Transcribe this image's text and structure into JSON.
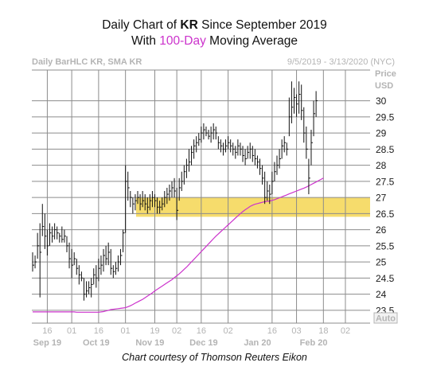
{
  "title": {
    "line1_prefix": "Daily Chart of ",
    "line1_ticker": "KR",
    "line1_suffix": " Since September 2019",
    "line2_prefix": "With ",
    "line2_accent": "100-Day",
    "line2_suffix": " Moving Average"
  },
  "header": {
    "left": "Daily BarHLC KR, SMA KR",
    "right": "9/5/2019 - 3/13/2020 (NYC)"
  },
  "axis": {
    "price_label": "Price",
    "currency_label": "USD",
    "auto_button": "Auto"
  },
  "credit": "Chart courtesy of Thomson Reuters Eikon",
  "colors": {
    "bars": "#111111",
    "sma": "#cc33cc",
    "highlight_zone": "#f6dc6c",
    "grid": "#8c8c8c",
    "axis_text": "#b4b4b4",
    "accent_text": "#cc33cc"
  },
  "chart_data": {
    "type": "ohlc",
    "series": [
      {
        "name": "KR",
        "style": "high-low-close bars"
      },
      {
        "name": "SMA KR",
        "style": "line"
      }
    ],
    "yticks": [
      "23.5",
      "24",
      "24.5",
      "25",
      "25.5",
      "26",
      "26.5",
      "27",
      "27.5",
      "28",
      "28.5",
      "29",
      "29.5",
      "30"
    ],
    "ylim": [
      23.3,
      30.8
    ],
    "grid": true,
    "x_day_labels": [
      {
        "label": "16",
        "bar": 6
      },
      {
        "label": "01",
        "bar": 16
      },
      {
        "label": "16",
        "bar": 27
      },
      {
        "label": "01",
        "bar": 38
      },
      {
        "label": "19",
        "bar": 50
      },
      {
        "label": "02",
        "bar": 59
      },
      {
        "label": "16",
        "bar": 69
      },
      {
        "label": "02",
        "bar": 80
      },
      {
        "label": "16",
        "bar": 98
      },
      {
        "label": "03",
        "bar": 108
      },
      {
        "label": "18",
        "bar": 119
      },
      {
        "label": "02",
        "bar": 128
      }
    ],
    "x_month_labels": [
      {
        "label": "Sep 19",
        "bar": 6
      },
      {
        "label": "Oct 19",
        "bar": 26
      },
      {
        "label": "Nov 19",
        "bar": 48
      },
      {
        "label": "Dec 19",
        "bar": 70
      },
      {
        "label": "Jan 20",
        "bar": 92
      },
      {
        "label": "Feb 20",
        "bar": 115
      }
    ],
    "zone": {
      "low": 26.4,
      "high": 27.0
    },
    "hlc": [
      [
        25.3,
        24.7,
        24.9
      ],
      [
        25.2,
        24.8,
        25.0
      ],
      [
        25.9,
        25.1,
        25.5
      ],
      [
        26.2,
        23.9,
        25.3
      ],
      [
        26.8,
        25.8,
        26.1
      ],
      [
        26.5,
        25.4,
        25.8
      ],
      [
        26.0,
        25.2,
        25.5
      ],
      [
        26.2,
        25.5,
        25.9
      ],
      [
        26.1,
        25.6,
        25.8
      ],
      [
        26.2,
        25.7,
        26.0
      ],
      [
        26.1,
        25.7,
        25.9
      ],
      [
        25.9,
        25.6,
        25.8
      ],
      [
        26.1,
        25.6,
        25.7
      ],
      [
        26.0,
        25.6,
        25.8
      ],
      [
        25.8,
        25.3,
        25.5
      ],
      [
        25.6,
        24.8,
        25.1
      ],
      [
        25.4,
        24.5,
        24.9
      ],
      [
        25.3,
        24.9,
        25.1
      ],
      [
        25.1,
        24.6,
        24.8
      ],
      [
        24.9,
        24.3,
        24.6
      ],
      [
        24.7,
        24.4,
        24.5
      ],
      [
        24.5,
        23.8,
        24.0
      ],
      [
        24.4,
        23.9,
        24.1
      ],
      [
        24.4,
        24.0,
        24.2
      ],
      [
        24.5,
        23.9,
        24.3
      ],
      [
        24.8,
        24.3,
        24.6
      ],
      [
        24.9,
        24.2,
        24.5
      ],
      [
        25.1,
        24.4,
        24.8
      ],
      [
        25.2,
        24.6,
        24.9
      ],
      [
        25.4,
        24.7,
        25.2
      ],
      [
        25.5,
        24.9,
        25.1
      ],
      [
        25.6,
        24.9,
        25.3
      ],
      [
        25.4,
        24.6,
        24.8
      ],
      [
        24.9,
        24.5,
        24.7
      ],
      [
        25.0,
        24.6,
        24.8
      ],
      [
        25.2,
        24.7,
        25.0
      ],
      [
        25.4,
        24.9,
        25.2
      ],
      [
        26.0,
        25.3,
        25.9
      ],
      [
        28.0,
        25.9,
        27.5
      ],
      [
        27.8,
        26.9,
        27.3
      ],
      [
        27.2,
        26.7,
        27.0
      ],
      [
        27.0,
        26.5,
        26.8
      ],
      [
        27.1,
        26.6,
        26.9
      ],
      [
        27.2,
        26.8,
        27.0
      ],
      [
        27.1,
        26.6,
        26.8
      ],
      [
        27.2,
        26.7,
        26.9
      ],
      [
        27.1,
        26.6,
        26.8
      ],
      [
        27.0,
        26.5,
        26.7
      ],
      [
        27.1,
        26.6,
        26.9
      ],
      [
        27.2,
        26.7,
        27.0
      ],
      [
        27.1,
        26.7,
        26.9
      ],
      [
        27.0,
        26.5,
        26.7
      ],
      [
        26.9,
        26.5,
        26.7
      ],
      [
        27.0,
        26.6,
        26.8
      ],
      [
        27.2,
        26.7,
        27.0
      ],
      [
        27.3,
        26.8,
        27.1
      ],
      [
        27.4,
        26.9,
        27.2
      ],
      [
        27.5,
        27.0,
        27.3
      ],
      [
        27.6,
        27.0,
        27.2
      ],
      [
        27.3,
        26.3,
        26.6
      ],
      [
        27.6,
        26.9,
        27.3
      ],
      [
        27.8,
        27.2,
        27.5
      ],
      [
        28.0,
        27.4,
        27.8
      ],
      [
        28.2,
        27.6,
        28.0
      ],
      [
        28.5,
        27.8,
        28.1
      ],
      [
        28.6,
        28.0,
        28.4
      ],
      [
        28.8,
        28.2,
        28.6
      ],
      [
        28.9,
        28.4,
        28.7
      ],
      [
        29.0,
        28.6,
        28.8
      ],
      [
        29.2,
        28.7,
        29.0
      ],
      [
        29.3,
        28.8,
        29.1
      ],
      [
        29.2,
        28.9,
        29.0
      ],
      [
        29.1,
        28.8,
        28.9
      ],
      [
        29.2,
        28.7,
        29.0
      ],
      [
        29.3,
        28.8,
        29.1
      ],
      [
        29.2,
        28.8,
        29.0
      ],
      [
        28.9,
        28.5,
        28.7
      ],
      [
        28.8,
        28.4,
        28.6
      ],
      [
        28.7,
        28.3,
        28.5
      ],
      [
        28.8,
        28.4,
        28.6
      ],
      [
        28.9,
        28.5,
        28.7
      ],
      [
        28.8,
        28.4,
        28.6
      ],
      [
        28.7,
        28.3,
        28.5
      ],
      [
        28.6,
        28.2,
        28.4
      ],
      [
        28.8,
        28.3,
        28.6
      ],
      [
        28.7,
        28.3,
        28.5
      ],
      [
        28.6,
        28.1,
        28.3
      ],
      [
        28.5,
        28.0,
        28.2
      ],
      [
        28.6,
        28.2,
        28.4
      ],
      [
        28.7,
        28.2,
        28.5
      ],
      [
        28.6,
        28.1,
        28.3
      ],
      [
        28.5,
        28.0,
        28.2
      ],
      [
        28.3,
        27.9,
        28.1
      ],
      [
        28.2,
        27.7,
        27.9
      ],
      [
        28.0,
        27.4,
        27.6
      ],
      [
        27.8,
        26.8,
        27.0
      ],
      [
        27.5,
        26.9,
        27.2
      ],
      [
        27.4,
        26.8,
        27.1
      ],
      [
        27.8,
        27.1,
        27.5
      ],
      [
        28.1,
        27.5,
        27.8
      ],
      [
        28.3,
        27.7,
        28.0
      ],
      [
        28.5,
        27.9,
        28.2
      ],
      [
        28.8,
        28.2,
        28.6
      ],
      [
        28.9,
        28.4,
        28.7
      ],
      [
        28.7,
        28.3,
        28.5
      ],
      [
        30.1,
        28.9,
        29.5
      ],
      [
        30.6,
        29.3,
        29.8
      ],
      [
        30.4,
        29.6,
        30.1
      ],
      [
        30.2,
        29.5,
        29.9
      ],
      [
        30.6,
        29.6,
        30.2
      ],
      [
        30.5,
        29.4,
        29.7
      ],
      [
        29.8,
        28.7,
        29.0
      ],
      [
        29.2,
        28.2,
        28.5
      ],
      [
        28.2,
        27.1,
        27.6
      ],
      [
        29.1,
        28.0,
        28.7
      ],
      [
        30.0,
        28.9,
        29.6
      ],
      [
        30.3,
        29.5,
        30.0
      ]
    ],
    "sma": [
      23.45,
      23.45,
      23.45,
      23.45,
      23.45,
      23.45,
      23.45,
      23.45,
      23.45,
      23.45,
      23.45,
      23.45,
      23.45,
      23.45,
      23.45,
      23.45,
      23.45,
      23.45,
      23.44,
      23.44,
      23.44,
      23.44,
      23.44,
      23.44,
      23.44,
      23.44,
      23.44,
      23.44,
      23.45,
      23.46,
      23.48,
      23.5,
      23.52,
      23.53,
      23.54,
      23.55,
      23.56,
      23.57,
      23.58,
      23.61,
      23.64,
      23.68,
      23.72,
      23.76,
      23.8,
      23.84,
      23.89,
      23.94,
      23.99,
      24.04,
      24.1,
      24.15,
      24.2,
      24.25,
      24.3,
      24.35,
      24.4,
      24.45,
      24.51,
      24.57,
      24.63,
      24.7,
      24.77,
      24.84,
      24.92,
      25.0,
      25.08,
      25.16,
      25.24,
      25.32,
      25.4,
      25.48,
      25.56,
      25.64,
      25.72,
      25.8,
      25.87,
      25.94,
      26.01,
      26.08,
      26.15,
      26.22,
      26.29,
      26.36,
      26.43,
      26.5,
      26.56,
      26.62,
      26.67,
      26.72,
      26.76,
      26.79,
      26.81,
      26.83,
      26.85,
      26.87,
      26.88,
      26.89,
      26.91,
      26.93,
      26.96,
      26.99,
      27.02,
      27.05,
      27.08,
      27.11,
      27.14,
      27.17,
      27.2,
      27.23,
      27.26,
      27.29,
      27.32,
      27.36,
      27.4,
      27.44,
      27.48,
      27.52,
      27.56,
      27.6
    ]
  }
}
